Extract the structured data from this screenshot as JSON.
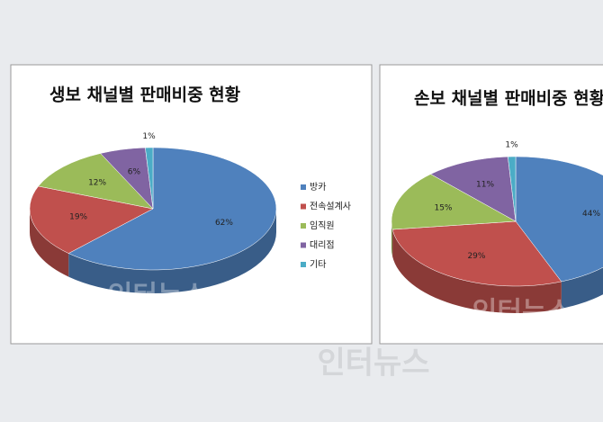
{
  "chart_data": [
    {
      "type": "pie",
      "title": "생보 채널별 판매비중 현황",
      "categories": [
        "방카",
        "전속설계사",
        "임직원",
        "대리점",
        "기타"
      ],
      "values": [
        62,
        19,
        12,
        6,
        1
      ],
      "value_labels": [
        "62%",
        "19%",
        "12%",
        "6%",
        "1%"
      ],
      "colors": [
        "#4f81bd",
        "#c0504d",
        "#9bbb59",
        "#8064a2",
        "#4bacc6"
      ],
      "legend": "right"
    },
    {
      "type": "pie",
      "title": "손보 채널별 판매비중 현황",
      "values": [
        44,
        29,
        15,
        11,
        1
      ],
      "value_labels": [
        "44%",
        "29%",
        "15%",
        "11%",
        "1%"
      ],
      "colors": [
        "#4f81bd",
        "#c0504d",
        "#9bbb59",
        "#8064a2",
        "#4bacc6"
      ]
    }
  ],
  "watermark": "인터뉴스"
}
